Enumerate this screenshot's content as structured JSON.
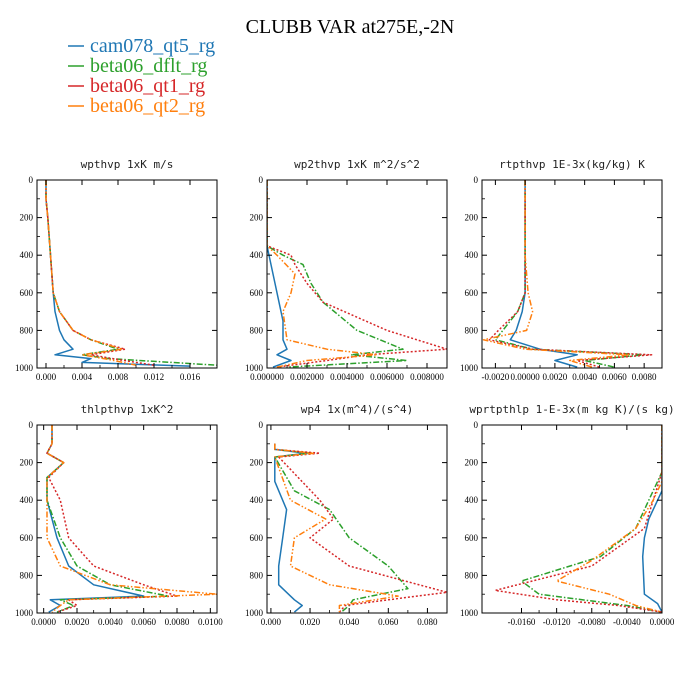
{
  "title": "CLUBB VAR at275E,-2N",
  "legend": [
    {
      "name": "cam078_qt5_rg",
      "color": "#1f77b4",
      "dash": "solid"
    },
    {
      "name": "beta06_dflt_rg",
      "color": "#2ca02c",
      "dash": "dashdot"
    },
    {
      "name": "beta06_qt1_rg",
      "color": "#d62728",
      "dash": "dot"
    },
    {
      "name": "beta06_qt2_rg",
      "color": "#ff7f0e",
      "dash": "dashdotdot"
    }
  ],
  "chart_data": [
    {
      "type": "line",
      "title": "wpthvp  1xK m/s",
      "xlim": [
        -0.001,
        0.019
      ],
      "ylim": [
        1000,
        0
      ],
      "xticks": [
        0.0,
        0.004,
        0.008,
        0.012,
        0.016
      ],
      "xtick_labels": [
        "0.000",
        "0.004",
        "0.008",
        "0.012",
        "0.016"
      ],
      "yticks": [
        0,
        200,
        400,
        600,
        800,
        1000
      ],
      "series": [
        {
          "name": "cam078_qt5_rg",
          "x": [
            0.0,
            0.0,
            0.0002,
            0.0005,
            0.0008,
            0.001,
            0.0015,
            0.002,
            0.003,
            0.001,
            0.005,
            0.004,
            0.016
          ],
          "y": [
            0,
            100,
            200,
            400,
            600,
            700,
            800,
            850,
            900,
            930,
            950,
            970,
            990
          ]
        },
        {
          "name": "beta06_dflt_rg",
          "x": [
            0.0,
            0.0,
            0.0002,
            0.0005,
            0.0008,
            0.0015,
            0.003,
            0.005,
            0.008,
            0.004,
            0.007,
            0.019
          ],
          "y": [
            0,
            100,
            200,
            400,
            600,
            700,
            800,
            850,
            900,
            930,
            950,
            985
          ]
        },
        {
          "name": "beta06_qt1_rg",
          "x": [
            0.0,
            0.0,
            0.0002,
            0.0005,
            0.0008,
            0.0015,
            0.003,
            0.005,
            0.0088,
            0.005,
            0.008,
            0.012
          ],
          "y": [
            0,
            100,
            200,
            400,
            600,
            700,
            800,
            850,
            900,
            930,
            955,
            985
          ]
        },
        {
          "name": "beta06_qt2_rg",
          "x": [
            0.0,
            0.0,
            0.0002,
            0.0005,
            0.0008,
            0.0015,
            0.003,
            0.005,
            0.0085,
            0.004,
            0.007,
            0.01
          ],
          "y": [
            0,
            100,
            200,
            400,
            600,
            700,
            800,
            850,
            900,
            930,
            955,
            985
          ]
        }
      ]
    },
    {
      "type": "line",
      "title": "wp2thvp  1xK m^2/s^2",
      "xlim": [
        0.0,
        0.009
      ],
      "ylim": [
        1000,
        0
      ],
      "xticks": [
        0.0,
        0.002,
        0.004,
        0.006,
        0.008
      ],
      "xtick_labels": [
        "0.000000",
        "0.002000",
        "0.004000",
        "0.006000",
        "0.008000"
      ],
      "yticks": [
        0,
        200,
        400,
        600,
        800,
        1000
      ],
      "series": [
        {
          "name": "cam078_qt5_rg",
          "x": [
            0.0,
            0.0,
            0.0,
            0.0002,
            0.0004,
            0.0006,
            0.0008,
            0.0008,
            0.001,
            0.0005,
            0.0012,
            0.0003
          ],
          "y": [
            0,
            200,
            350,
            450,
            550,
            650,
            750,
            850,
            900,
            930,
            960,
            995
          ]
        },
        {
          "name": "beta06_dflt_rg",
          "x": [
            0.0,
            0.0,
            0.0,
            0.0008,
            0.0018,
            0.0022,
            0.0028,
            0.0045,
            0.0068,
            0.0042,
            0.007,
            0.001
          ],
          "y": [
            0,
            200,
            350,
            400,
            450,
            550,
            650,
            800,
            900,
            930,
            960,
            995
          ]
        },
        {
          "name": "beta06_qt1_rg",
          "x": [
            0.0,
            0.0,
            0.0,
            0.0012,
            0.0014,
            0.002,
            0.0028,
            0.006,
            0.009,
            0.005,
            0.003,
            0.0005
          ],
          "y": [
            0,
            200,
            350,
            400,
            450,
            550,
            650,
            800,
            900,
            930,
            960,
            995
          ]
        },
        {
          "name": "beta06_qt2_rg",
          "x": [
            0.0,
            0.0,
            0.0,
            0.0005,
            0.0014,
            0.0012,
            0.0008,
            0.001,
            0.003,
            0.0055,
            0.002,
            0.0005
          ],
          "y": [
            0,
            200,
            350,
            400,
            500,
            600,
            700,
            850,
            900,
            930,
            960,
            995
          ]
        }
      ]
    },
    {
      "type": "line",
      "title": "rtpthvp  1E-3x(kg/kg) K",
      "xlim": [
        -0.0029,
        0.0092
      ],
      "ylim": [
        1000,
        0
      ],
      "xticks": [
        -0.002,
        0.0,
        0.002,
        0.004,
        0.006,
        0.008
      ],
      "xtick_labels": [
        "-0.0020",
        "0.00000",
        "0.0020",
        "0.0040",
        "0.0060",
        "0.0080"
      ],
      "yticks": [
        0,
        200,
        400,
        600,
        800,
        1000
      ],
      "series": [
        {
          "name": "cam078_qt5_rg",
          "x": [
            0.0,
            0.0,
            0.0,
            0.0,
            -0.0002,
            -0.0006,
            -0.001,
            0.001,
            0.0035,
            0.002,
            0.0035
          ],
          "y": [
            0,
            200,
            400,
            600,
            700,
            800,
            850,
            900,
            930,
            960,
            995
          ]
        },
        {
          "name": "beta06_dflt_rg",
          "x": [
            0.0,
            0.0,
            0.0,
            0.0,
            -0.0005,
            -0.0015,
            -0.002,
            0.0005,
            0.008,
            0.004,
            0.006
          ],
          "y": [
            0,
            200,
            400,
            600,
            700,
            800,
            850,
            900,
            930,
            960,
            995
          ]
        },
        {
          "name": "beta06_qt1_rg",
          "x": [
            0.0,
            0.0,
            0.0,
            0.0,
            -0.0005,
            -0.0018,
            -0.0024,
            0.0005,
            0.0085,
            0.0035,
            0.005
          ],
          "y": [
            0,
            200,
            400,
            600,
            700,
            800,
            850,
            900,
            930,
            960,
            995
          ]
        },
        {
          "name": "beta06_qt2_rg",
          "x": [
            0.0,
            0.0,
            0.0,
            0.0002,
            0.0005,
            0.0001,
            -0.0028,
            0.0,
            0.007,
            0.003,
            0.0045
          ],
          "y": [
            0,
            200,
            400,
            600,
            700,
            800,
            850,
            900,
            930,
            960,
            995
          ]
        }
      ]
    },
    {
      "type": "line",
      "title": "thlpthvp  1xK^2",
      "xlim": [
        -0.0004,
        0.0104
      ],
      "ylim": [
        1000,
        0
      ],
      "xticks": [
        0.0,
        0.002,
        0.004,
        0.006,
        0.008,
        0.01
      ],
      "xtick_labels": [
        "0.0000",
        "0.0020",
        "0.0040",
        "0.0060",
        "0.0080",
        "0.0100"
      ],
      "yticks": [
        0,
        200,
        400,
        600,
        800,
        1000
      ],
      "series": [
        {
          "name": "cam078_qt5_rg",
          "x": [
            0.0005,
            0.0005,
            0.0002,
            0.0012,
            0.0002,
            0.0002,
            0.0008,
            0.0015,
            0.003,
            0.006,
            0.0004,
            0.001,
            0.0003
          ],
          "y": [
            0,
            100,
            150,
            200,
            280,
            400,
            600,
            750,
            850,
            910,
            930,
            960,
            995
          ]
        },
        {
          "name": "beta06_dflt_rg",
          "x": [
            0.0005,
            0.0005,
            0.0002,
            0.0012,
            0.0002,
            0.0002,
            0.001,
            0.002,
            0.004,
            0.0075,
            0.001,
            0.0018,
            0.0008
          ],
          "y": [
            0,
            100,
            150,
            200,
            280,
            400,
            600,
            750,
            850,
            910,
            930,
            960,
            995
          ]
        },
        {
          "name": "beta06_qt1_rg",
          "x": [
            0.0005,
            0.0005,
            0.0002,
            0.0012,
            0.0003,
            0.001,
            0.0015,
            0.003,
            0.006,
            0.008,
            0.0015,
            0.002,
            0.0008
          ],
          "y": [
            0,
            100,
            150,
            200,
            280,
            400,
            600,
            750,
            850,
            910,
            930,
            960,
            995
          ]
        },
        {
          "name": "beta06_qt2_rg",
          "x": [
            0.0005,
            0.0005,
            0.0002,
            0.0012,
            0.0002,
            0.0002,
            0.0002,
            0.001,
            0.004,
            0.0104,
            0.0015,
            0.001,
            0.0005
          ],
          "y": [
            0,
            100,
            150,
            200,
            280,
            400,
            600,
            750,
            850,
            900,
            930,
            960,
            995
          ]
        }
      ]
    },
    {
      "type": "line",
      "title": "wp4  1x(m^4)/(s^4)",
      "xlim": [
        -0.002,
        0.09
      ],
      "ylim": [
        1000,
        0
      ],
      "xticks": [
        0.0,
        0.02,
        0.04,
        0.06,
        0.08
      ],
      "xtick_labels": [
        "0.000",
        "0.020",
        "0.040",
        "0.060",
        "0.080"
      ],
      "yticks": [
        0,
        200,
        400,
        600,
        800,
        1000
      ],
      "series": [
        {
          "name": "cam078_qt5_rg",
          "x": [
            0.002,
            0.002,
            0.018,
            0.002,
            0.002,
            0.008,
            0.006,
            0.004,
            0.004,
            0.012,
            0.016,
            0.012
          ],
          "y": [
            100,
            130,
            150,
            170,
            300,
            450,
            600,
            750,
            850,
            930,
            960,
            995
          ]
        },
        {
          "name": "beta06_dflt_rg",
          "x": [
            0.002,
            0.002,
            0.02,
            0.002,
            0.012,
            0.03,
            0.04,
            0.06,
            0.07,
            0.042,
            0.04,
            0.036
          ],
          "y": [
            100,
            130,
            150,
            170,
            350,
            450,
            600,
            750,
            870,
            930,
            960,
            995
          ]
        },
        {
          "name": "beta06_qt1_rg",
          "x": [
            0.002,
            0.002,
            0.025,
            0.004,
            0.025,
            0.032,
            0.02,
            0.04,
            0.09,
            0.06,
            0.038,
            0.035
          ],
          "y": [
            100,
            130,
            150,
            170,
            400,
            500,
            600,
            750,
            890,
            930,
            960,
            995
          ]
        },
        {
          "name": "beta06_qt2_rg",
          "x": [
            0.002,
            0.002,
            0.022,
            0.002,
            0.01,
            0.028,
            0.012,
            0.01,
            0.03,
            0.065,
            0.035,
            0.035
          ],
          "y": [
            100,
            130,
            150,
            170,
            400,
            500,
            600,
            750,
            850,
            910,
            960,
            995
          ]
        }
      ]
    },
    {
      "type": "line",
      "title": "wprtpthlp  1-E-3x(m kg K)/(s kg)",
      "xlim": [
        -0.0205,
        0.0
      ],
      "ylim": [
        1000,
        0
      ],
      "xticks": [
        -0.016,
        -0.012,
        -0.008,
        -0.004,
        0.0
      ],
      "xtick_labels": [
        "-0.0160",
        "-0.0120",
        "-0.0080",
        "-0.0040",
        "0.0000"
      ],
      "yticks": [
        0,
        200,
        400,
        600,
        800,
        1000
      ],
      "series": [
        {
          "name": "cam078_qt5_rg",
          "x": [
            0.0,
            0.0,
            -0.0005,
            -0.0015,
            -0.002,
            -0.0022,
            -0.002,
            -0.0005,
            0.0
          ],
          "y": [
            0,
            350,
            400,
            500,
            600,
            700,
            900,
            950,
            995
          ]
        },
        {
          "name": "beta06_dflt_rg",
          "x": [
            0.0,
            0.0,
            -0.0015,
            -0.003,
            -0.007,
            -0.016,
            -0.014,
            -0.004,
            0.0
          ],
          "y": [
            0,
            250,
            400,
            550,
            700,
            830,
            900,
            960,
            995
          ]
        },
        {
          "name": "beta06_qt1_rg",
          "x": [
            0.0,
            0.0,
            -0.001,
            -0.002,
            -0.008,
            -0.019,
            -0.012,
            -0.005,
            0.0
          ],
          "y": [
            0,
            250,
            400,
            550,
            750,
            880,
            930,
            960,
            995
          ]
        },
        {
          "name": "beta06_qt2_rg",
          "x": [
            0.0,
            0.0,
            -0.001,
            -0.003,
            -0.008,
            -0.012,
            -0.006,
            -0.003,
            0.0
          ],
          "y": [
            0,
            300,
            400,
            550,
            720,
            830,
            900,
            960,
            995
          ]
        }
      ]
    }
  ]
}
